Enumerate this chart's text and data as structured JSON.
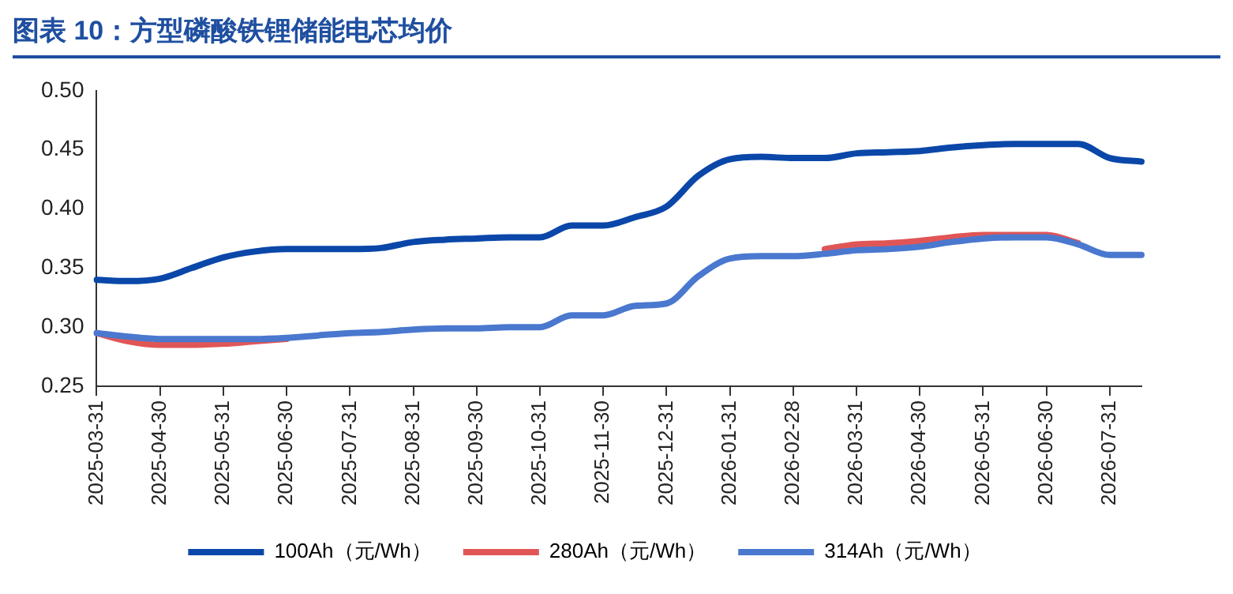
{
  "chart_data": {
    "type": "line",
    "title": "图表 10：方型磷酸铁锂储能电芯均价",
    "categories": [
      "2025-03-31",
      null,
      "2025-04-30",
      null,
      "2025-05-31",
      null,
      "2025-06-30",
      null,
      "2025-07-31",
      null,
      "2025-08-31",
      null,
      "2025-09-30",
      null,
      "2025-10-31",
      null,
      "2025-11-30",
      null,
      "2025-12-31",
      null,
      "2026-01-31",
      null,
      "2026-02-28",
      null,
      "2026-03-31",
      null,
      "2026-04-30",
      null,
      "2026-05-31",
      null,
      "2026-06-30",
      null,
      "2026-07-31",
      null
    ],
    "series": [
      {
        "name": "100Ah（元/Wh）",
        "color": "#0a47a9",
        "values": [
          0.34,
          0.339,
          0.341,
          0.35,
          0.359,
          0.364,
          0.366,
          0.366,
          0.366,
          0.367,
          0.372,
          0.374,
          0.375,
          0.376,
          0.376,
          0.386,
          0.386,
          0.393,
          0.402,
          0.428,
          0.442,
          0.444,
          0.443,
          0.443,
          0.447,
          0.448,
          0.449,
          0.452,
          0.454,
          0.455,
          0.455,
          0.455,
          0.443,
          0.44
        ]
      },
      {
        "name": "280Ah（元/Wh）",
        "color": "#e05656",
        "values": [
          0.295,
          0.288,
          0.285,
          0.285,
          0.286,
          0.288,
          0.29,
          null,
          null,
          null,
          null,
          null,
          null,
          null,
          null,
          null,
          null,
          null,
          null,
          null,
          null,
          null,
          null,
          0.366,
          0.37,
          0.371,
          0.373,
          0.376,
          0.378,
          0.378,
          0.378,
          0.371,
          null,
          null
        ]
      },
      {
        "name": "314Ah（元/Wh）",
        "color": "#4a78cf",
        "values": [
          0.295,
          0.292,
          0.29,
          0.29,
          0.29,
          0.29,
          0.291,
          0.293,
          0.295,
          0.296,
          0.298,
          0.299,
          0.299,
          0.3,
          0.3,
          0.31,
          0.31,
          0.318,
          0.32,
          0.343,
          0.358,
          0.36,
          0.36,
          0.362,
          0.365,
          0.366,
          0.368,
          0.372,
          0.375,
          0.376,
          0.376,
          0.37,
          0.361,
          0.361
        ]
      }
    ],
    "ylim": [
      0.25,
      0.5
    ],
    "yticks": [
      {
        "value": 0.25,
        "label": "0.25"
      },
      {
        "value": 0.3,
        "label": "0.30"
      },
      {
        "value": 0.35,
        "label": "0.35"
      },
      {
        "value": 0.4,
        "label": "0.40"
      },
      {
        "value": 0.45,
        "label": "0.45"
      },
      {
        "value": 0.5,
        "label": "0.50"
      }
    ],
    "grid": false,
    "legend": "bottom",
    "marker": "none",
    "line_style": "solid"
  }
}
